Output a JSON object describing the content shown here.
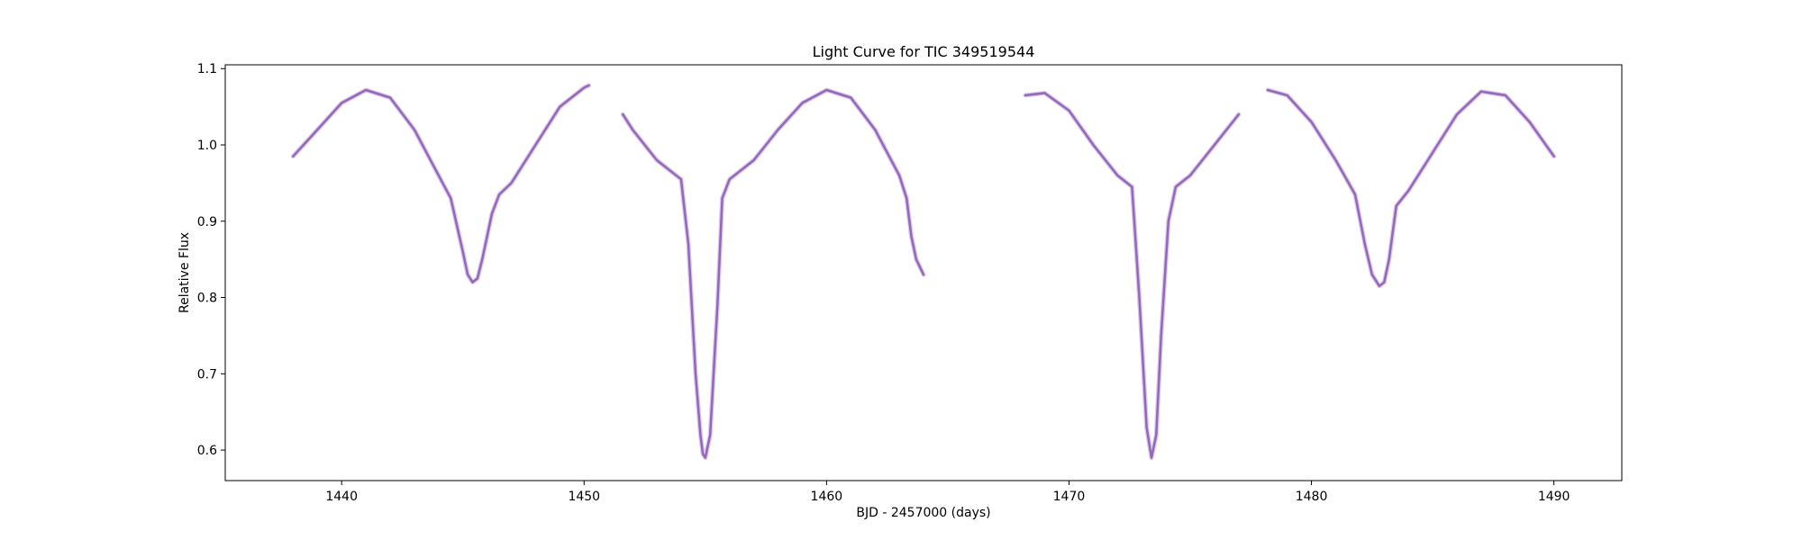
{
  "chart_data": {
    "type": "scatter",
    "title": "Light Curve for TIC 349519544",
    "xlabel": "BJD - 2457000 (days)",
    "ylabel": "Relative Flux",
    "xlim": [
      1435.2,
      1492.8
    ],
    "ylim": [
      0.56,
      1.105
    ],
    "xticks": [
      1440,
      1450,
      1460,
      1470,
      1480,
      1490
    ],
    "yticks": [
      0.6,
      0.7,
      0.8,
      0.9,
      1.0,
      1.1
    ],
    "ytick_labels": [
      "0.6",
      "0.7",
      "0.8",
      "0.9",
      "1.0",
      "1.1"
    ],
    "grid": false,
    "legend": "none",
    "color": "#9467bd",
    "segments": [
      {
        "x": [
          1438.0,
          1439.0,
          1440.0,
          1441.0,
          1442.0,
          1443.0,
          1444.0,
          1444.5,
          1445.0,
          1445.2,
          1445.4,
          1445.6,
          1445.8,
          1446.2,
          1446.5,
          1447.0,
          1448.0,
          1449.0,
          1450.0,
          1450.2
        ],
        "y": [
          0.985,
          1.02,
          1.055,
          1.072,
          1.062,
          1.02,
          0.96,
          0.93,
          0.86,
          0.83,
          0.82,
          0.825,
          0.85,
          0.91,
          0.935,
          0.95,
          1.0,
          1.05,
          1.075,
          1.078
        ]
      },
      {
        "x": [
          1451.6,
          1452.0,
          1453.0,
          1454.0,
          1454.3,
          1454.6,
          1454.8,
          1454.9,
          1455.0,
          1455.2,
          1455.5,
          1455.7,
          1456.0,
          1457.0,
          1458.0,
          1459.0,
          1460.0,
          1461.0,
          1462.0,
          1463.0,
          1463.3,
          1463.5,
          1463.7,
          1464.0
        ],
        "y": [
          1.04,
          1.02,
          0.98,
          0.955,
          0.87,
          0.7,
          0.62,
          0.595,
          0.59,
          0.62,
          0.79,
          0.93,
          0.955,
          0.98,
          1.02,
          1.055,
          1.072,
          1.062,
          1.02,
          0.96,
          0.93,
          0.88,
          0.85,
          0.83
        ]
      },
      {
        "x": [
          1468.2,
          1469.0,
          1470.0,
          1471.0,
          1472.0,
          1472.6,
          1472.9,
          1473.2,
          1473.4,
          1473.6,
          1473.8,
          1474.1,
          1474.4,
          1475.0,
          1476.0,
          1477.0
        ],
        "y": [
          1.065,
          1.068,
          1.045,
          1.0,
          0.96,
          0.945,
          0.8,
          0.63,
          0.59,
          0.62,
          0.75,
          0.9,
          0.945,
          0.96,
          1.0,
          1.04
        ]
      },
      {
        "x": [
          1478.2,
          1479.0,
          1480.0,
          1481.0,
          1481.8,
          1482.2,
          1482.5,
          1482.8,
          1483.0,
          1483.2,
          1483.5,
          1484.0,
          1485.0,
          1486.0,
          1487.0,
          1488.0,
          1489.0,
          1490.0
        ],
        "y": [
          1.072,
          1.065,
          1.03,
          0.98,
          0.935,
          0.87,
          0.83,
          0.815,
          0.82,
          0.85,
          0.92,
          0.94,
          0.99,
          1.04,
          1.07,
          1.065,
          1.03,
          0.985
        ]
      }
    ]
  }
}
